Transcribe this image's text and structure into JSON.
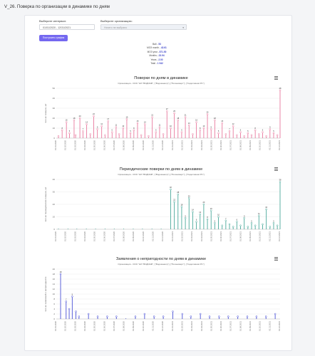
{
  "page": {
    "title": "V_26. Поверка по организации в динамике по дням"
  },
  "form": {
    "interval_label": "Выберите интервал:",
    "interval_value": "01/01/2020 - 12/31/2021",
    "org_label": "Выберите организацию:",
    "org_placeholder": "Ничего не выбрано",
    "build_button": "Построить график"
  },
  "stats": [
    {
      "name": "Ball",
      "value": "53"
    },
    {
      "name": "МОЗ month",
      "value": "42.61"
    },
    {
      "name": "МОЗ year",
      "value": "871.50"
    },
    {
      "name": "Months",
      "value": "23.94"
    },
    {
      "name": "Years",
      "value": "2.00"
    },
    {
      "name": "Total",
      "value": "1 942"
    }
  ],
  "chart_data": [
    {
      "type": "line",
      "title": "Поверки по дням в динамике",
      "subtitle": "Организация - ООО \"НИ \"ВОДИНФ\", [\"Водоканалр\"], [\"Печановерт\"], [\"Садоповник РС\"]",
      "ylabel": "Кол-во поверок, шт",
      "ylim": [
        0,
        50
      ],
      "yticks": [
        0,
        10,
        20,
        30,
        40,
        50
      ],
      "color": "#e8799e",
      "x": [
        "2020-01-08",
        "2020-01-20",
        "2020-02-03",
        "2020-02-13",
        "2020-02-28",
        "2020-03-04",
        "2020-03-18",
        "2020-03-28",
        "2020-04-09",
        "2020-04-21",
        "2020-05-02",
        "2020-05-14",
        "2020-05-28",
        "2020-06-08",
        "2020-06-18",
        "2020-07-01",
        "2020-07-14",
        "2020-07-24",
        "2020-08-06",
        "2020-08-18",
        "2020-08-30",
        "2020-09-10",
        "2020-09-22",
        "2020-10-04",
        "2020-10-16",
        "2020-10-28",
        "2020-11-09",
        "2020-11-21",
        "2020-12-03",
        "2020-12-15",
        "2020-12-27",
        "2021-01-08",
        "2021-01-20",
        "2021-02-01",
        "2021-02-13",
        "2021-02-25",
        "2021-03-09",
        "2021-03-21",
        "2021-04-02",
        "2021-04-14",
        "2021-04-26",
        "2021-05-08",
        "2021-05-20",
        "2021-06-01",
        "2021-06-13",
        "2021-06-25",
        "2021-07-07",
        "2021-07-19",
        "2021-07-31",
        "2021-08-12",
        "2021-08-24",
        "2021-09-05",
        "2021-09-17",
        "2021-09-29",
        "2021-10-11",
        "2021-10-23",
        "2021-11-04",
        "2021-11-16",
        "2021-11-28",
        "2021-12-10",
        "2021-12-22",
        "2021-12-31"
      ],
      "values": [
        2,
        8,
        16,
        5,
        18,
        3,
        20,
        7,
        14,
        4,
        22,
        9,
        12,
        3,
        17,
        6,
        11,
        4,
        10,
        19,
        5,
        8,
        15,
        3,
        14,
        2,
        21,
        6,
        11,
        4,
        27,
        10,
        25,
        18,
        6,
        21,
        13,
        4,
        16,
        8,
        10,
        24,
        9,
        18,
        5,
        15,
        4,
        7,
        12,
        3,
        6,
        2,
        5,
        3,
        8,
        4,
        6,
        2,
        9,
        5,
        3,
        48
      ],
      "xtick_labels": [
        "01.01.2020",
        "01.02.2020",
        "01.03.2020",
        "01.04.2020",
        "01.05.2020",
        "01.06.2020",
        "01.07.2020",
        "01.08.2020",
        "01.09.2020",
        "01.10.2020",
        "01.11.2020",
        "01.12.2020",
        "01.01.2021",
        "01.02.2021",
        "01.03.2021",
        "01.04.2021",
        "01.05.2021",
        "01.06.2021",
        "01.07.2021",
        "01.08.2021",
        "01.09.2021",
        "01.10.2021",
        "01.11.2021",
        "01.12.2021"
      ]
    },
    {
      "type": "line",
      "title": "Периодические поверки по дням в динамике",
      "subtitle": "Организация - ООО \"НИ \"ВОДИНФ\", [\"Водоканалр\"], [\"Печановерт\"], [\"Садоповник РС\"]",
      "ylabel": "Кол-во периодических поверок, шт",
      "ylim": [
        0,
        40
      ],
      "yticks": [
        0,
        10,
        20,
        30,
        40
      ],
      "color": "#4aa89a",
      "x": [
        "2020-01-08",
        "2020-02-08",
        "2020-03-08",
        "2020-04-08",
        "2020-05-08",
        "2020-06-08",
        "2020-07-08",
        "2020-08-08",
        "2020-09-08",
        "2020-10-08",
        "2020-11-08",
        "2020-12-08",
        "2021-01-08",
        "2021-01-20",
        "2021-02-01",
        "2021-02-13",
        "2021-02-25",
        "2021-03-09",
        "2021-03-21",
        "2021-04-02",
        "2021-04-14",
        "2021-04-26",
        "2021-05-08",
        "2021-05-20",
        "2021-06-01",
        "2021-06-13",
        "2021-06-25",
        "2021-07-07",
        "2021-07-19",
        "2021-07-31",
        "2021-08-12",
        "2021-08-24",
        "2021-09-05",
        "2021-09-17",
        "2021-09-29",
        "2021-10-11",
        "2021-10-23",
        "2021-11-04",
        "2021-11-16",
        "2021-11-28",
        "2021-12-10",
        "2021-12-22",
        "2021-12-31"
      ],
      "values": [
        0,
        0,
        0,
        0,
        0,
        0,
        0,
        0,
        0,
        0,
        0,
        0,
        32,
        22,
        28,
        18,
        9,
        25,
        14,
        6,
        12,
        20,
        8,
        15,
        5,
        10,
        3,
        7,
        4,
        2,
        6,
        3,
        9,
        2,
        5,
        3,
        11,
        4,
        16,
        2,
        5,
        3,
        38
      ],
      "xtick_labels": [
        "01.01.2020",
        "01.02.2020",
        "01.03.2020",
        "01.04.2020",
        "01.05.2020",
        "01.06.2020",
        "01.07.2020",
        "01.08.2020",
        "01.09.2020",
        "01.10.2020",
        "01.11.2020",
        "01.12.2020",
        "01.01.2021",
        "01.02.2021",
        "01.03.2021",
        "01.04.2021",
        "01.05.2021",
        "01.06.2021",
        "01.07.2021",
        "01.08.2021",
        "01.09.2021",
        "01.10.2021",
        "01.11.2021",
        "01.12.2021"
      ]
    },
    {
      "type": "line",
      "title": "Заявления о непригодности по дням в динамике",
      "subtitle": "Организация - ООО \"НИ \"ВОДИНФ\", [\"Водоканалр\"], [\"Печановерт\"], [\"Садоповник РС\"]",
      "ylabel": "Кол-во заявлений о непригодности",
      "ylim": [
        0,
        20
      ],
      "yticks": [
        0,
        2,
        4,
        6,
        8,
        10,
        12,
        14,
        16,
        18,
        20
      ],
      "color": "#4b52d6",
      "x": [
        "2020-01-15",
        "2020-02-02",
        "2020-02-12",
        "2020-02-22",
        "2020-03-05",
        "2020-03-15",
        "2020-04-15",
        "2020-05-15",
        "2020-06-15",
        "2020-07-15",
        "2020-08-15",
        "2020-09-15",
        "2020-10-15",
        "2020-11-15",
        "2020-12-15",
        "2021-01-15",
        "2021-02-15",
        "2021-03-15",
        "2021-04-15",
        "2021-05-15",
        "2021-06-15",
        "2021-07-15",
        "2021-08-15",
        "2021-09-15",
        "2021-10-15",
        "2021-11-15",
        "2021-12-15"
      ],
      "values": [
        18,
        7,
        4,
        9,
        3,
        1,
        2,
        1,
        1,
        1,
        0,
        1,
        2,
        1,
        1,
        3,
        2,
        1,
        2,
        1,
        1,
        1,
        1,
        1,
        1,
        1,
        2
      ],
      "xtick_labels": [
        "01.01.2020",
        "01.02.2020",
        "01.03.2020",
        "01.04.2020",
        "01.05.2020",
        "01.06.2020",
        "01.07.2020",
        "01.08.2020",
        "01.09.2020",
        "01.10.2020",
        "01.11.2020",
        "01.12.2020",
        "01.01.2021",
        "01.02.2021",
        "01.03.2021",
        "01.04.2021",
        "01.05.2021",
        "01.06.2021",
        "01.07.2021",
        "01.08.2021",
        "01.09.2021",
        "01.10.2021",
        "01.11.2021",
        "01.12.2021"
      ]
    }
  ]
}
